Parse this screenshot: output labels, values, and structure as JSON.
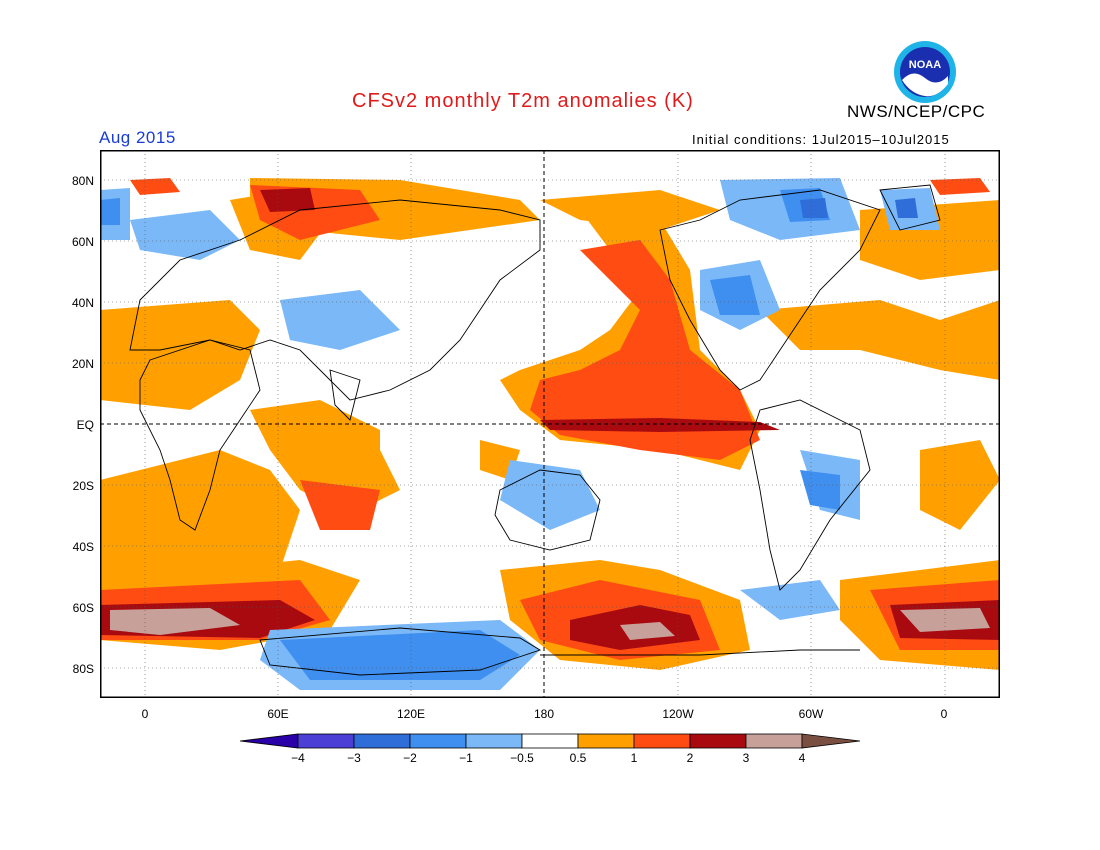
{
  "title": "CFSv2 monthly T2m anomalies (K)",
  "agency": "NWS/NCEP/CPC",
  "valid_month": "Aug 2015",
  "initial_conditions": "Initial conditions: 1Jul2015–10Jul2015",
  "logo": {
    "text": "NOAA",
    "icon": "noaa-logo"
  },
  "lat_labels": [
    "80N",
    "60N",
    "40N",
    "20N",
    "EQ",
    "20S",
    "40S",
    "60S",
    "80S"
  ],
  "lon_labels": [
    "0",
    "60E",
    "120E",
    "180",
    "120W",
    "60W",
    "0"
  ],
  "colorbar": {
    "labels": [
      "−4",
      "−3",
      "−2",
      "−1",
      "−0.5",
      "0.5",
      "1",
      "2",
      "3",
      "4"
    ],
    "colors": [
      "#2a00a8",
      "#4b3fd6",
      "#2f6ed8",
      "#3f8ff0",
      "#7ab8f8",
      "#ffffff",
      "#ffa000",
      "#ff4c12",
      "#a80a10",
      "#c8a09a",
      "#7a4e40"
    ]
  }
}
